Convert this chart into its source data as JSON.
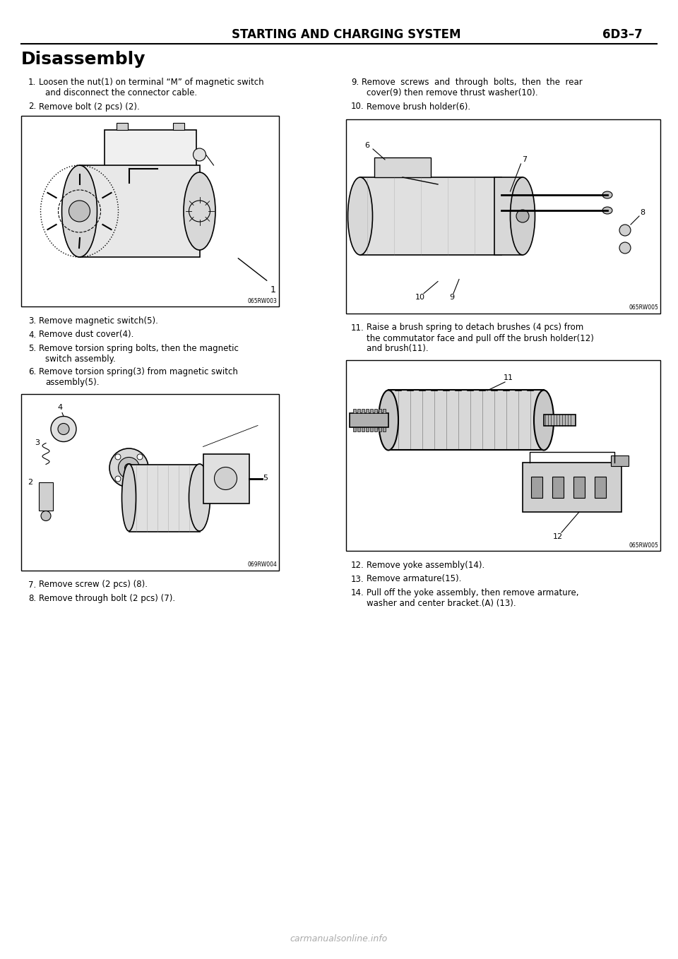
{
  "page_title": "STARTING AND CHARGING SYSTEM",
  "page_number": "6D3–7",
  "section_title": "Disassembly",
  "bg_color": "#ffffff",
  "text_color": "#000000",
  "img1_code": "065RW003",
  "img2_code": "069RW004",
  "img3_code": "065RW005",
  "img4_code": "065RW005",
  "footer_text": "carmanualsonline.info",
  "font_size_title": 11,
  "font_size_section": 18,
  "font_size_body": 8.5,
  "font_size_small": 6
}
